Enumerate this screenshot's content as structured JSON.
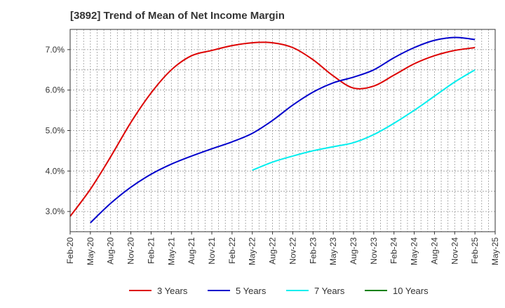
{
  "chart_data": {
    "type": "line",
    "title": "[3892]  Trend of Mean of Net Income Margin",
    "xlabel": "",
    "ylabel": "",
    "x_ticks": [
      "Feb-20",
      "May-20",
      "Aug-20",
      "Nov-20",
      "Feb-21",
      "May-21",
      "Aug-21",
      "Nov-21",
      "Feb-22",
      "May-22",
      "Aug-22",
      "Nov-22",
      "Feb-23",
      "May-23",
      "Aug-23",
      "Nov-23",
      "Feb-24",
      "May-24",
      "Aug-24",
      "Nov-24",
      "Feb-25",
      "May-25"
    ],
    "ylim": [
      2.5,
      7.5
    ],
    "y_ticks": [
      3.0,
      4.0,
      5.0,
      6.0,
      7.0
    ],
    "y_tick_format": "0.0%",
    "grid": true,
    "legend_position": "bottom",
    "series": [
      {
        "name": "3 Years",
        "color": "#dd0000",
        "x": [
          "Feb-20",
          "May-20",
          "Aug-20",
          "Nov-20",
          "Feb-21",
          "May-21",
          "Aug-21",
          "Nov-21",
          "Feb-22",
          "May-22",
          "Aug-22",
          "Nov-22",
          "Feb-23",
          "May-23",
          "Aug-23",
          "Nov-23",
          "Feb-24",
          "May-24",
          "Aug-24",
          "Nov-24",
          "Feb-25"
        ],
        "values": [
          2.88,
          3.55,
          4.35,
          5.2,
          5.93,
          6.5,
          6.85,
          6.98,
          7.1,
          7.17,
          7.17,
          7.05,
          6.75,
          6.35,
          6.05,
          6.1,
          6.37,
          6.65,
          6.85,
          6.98,
          7.05
        ]
      },
      {
        "name": "5 Years",
        "color": "#0000cc",
        "x": [
          "May-20",
          "Aug-20",
          "Nov-20",
          "Feb-21",
          "May-21",
          "Aug-21",
          "Nov-21",
          "Feb-22",
          "May-22",
          "Aug-22",
          "Nov-22",
          "Feb-23",
          "May-23",
          "Aug-23",
          "Nov-23",
          "Feb-24",
          "May-24",
          "Aug-24",
          "Nov-24",
          "Feb-25"
        ],
        "values": [
          2.72,
          3.2,
          3.6,
          3.92,
          4.17,
          4.37,
          4.55,
          4.72,
          4.93,
          5.25,
          5.63,
          5.95,
          6.18,
          6.32,
          6.5,
          6.8,
          7.05,
          7.23,
          7.3,
          7.25
        ]
      },
      {
        "name": "7 Years",
        "color": "#00eeee",
        "x": [
          "May-22",
          "Aug-22",
          "Nov-22",
          "Feb-23",
          "May-23",
          "Aug-23",
          "Nov-23",
          "Feb-24",
          "May-24",
          "Aug-24",
          "Nov-24",
          "Feb-25"
        ],
        "values": [
          4.02,
          4.22,
          4.37,
          4.5,
          4.6,
          4.7,
          4.9,
          5.18,
          5.5,
          5.85,
          6.2,
          6.5
        ]
      },
      {
        "name": "10 Years",
        "color": "#008000",
        "x": [],
        "values": []
      }
    ]
  }
}
